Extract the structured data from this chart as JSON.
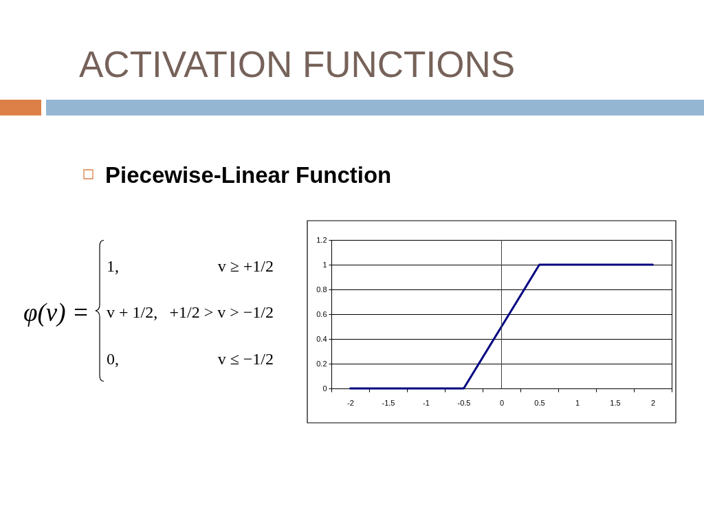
{
  "chart_data": {
    "type": "line",
    "title": "ACTIVATION FUNCTIONS",
    "subtitle": "Piecewise-Linear Function",
    "annotations": [
      "φ(v) =",
      "1,",
      "v + 1/2,",
      "0,",
      "v ≥ +1/2",
      "+1/2 > v > −1/2",
      "v ≤ −1/2"
    ],
    "categories": [
      "-2",
      "-1.5",
      "-1",
      "-0.5",
      "0",
      "0.5",
      "1",
      "1.5",
      "2"
    ],
    "series": [
      {
        "color": "#000080",
        "values": [
          0,
          0,
          0,
          0,
          0.5,
          1,
          1,
          1,
          1
        ]
      }
    ],
    "ylim": [
      0,
      1.2
    ],
    "yticks": [
      0,
      0.2,
      0.4,
      0.6,
      0.8,
      1,
      1.2
    ],
    "grid": "y",
    "ref_lines": [
      {
        "axis": "x",
        "value": "0",
        "color": "#404040"
      }
    ],
    "line_style": "solid"
  }
}
